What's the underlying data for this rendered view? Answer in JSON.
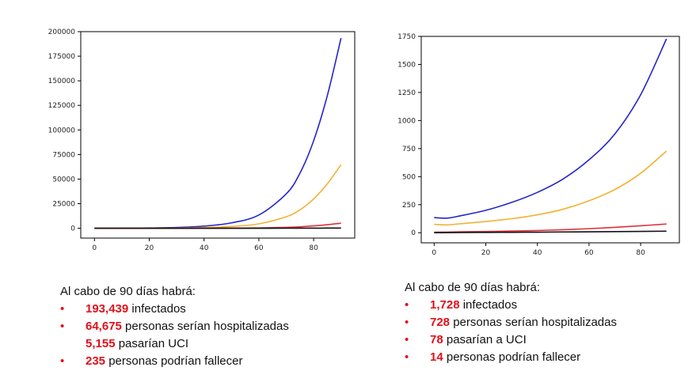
{
  "chart_data": [
    {
      "type": "line",
      "xlim": [
        -5,
        95
      ],
      "ylim": [
        -10000,
        200000
      ],
      "xticks": [
        0,
        20,
        40,
        60,
        80
      ],
      "yticks": [
        0,
        25000,
        50000,
        75000,
        100000,
        125000,
        150000,
        175000,
        200000
      ],
      "x": [
        0,
        10,
        20,
        30,
        40,
        50,
        60,
        70,
        75,
        80,
        85,
        90
      ],
      "series": [
        {
          "color": "#2525c8",
          "values": [
            0,
            60,
            300,
            800,
            2200,
            5500,
            13500,
            35000,
            56000,
            89000,
            135000,
            193439
          ]
        },
        {
          "color": "#f2b233",
          "values": [
            0,
            20,
            100,
            270,
            740,
            1850,
            4500,
            11700,
            18700,
            29800,
            45200,
            64675
          ]
        },
        {
          "color": "#e0303a",
          "values": [
            0,
            2,
            8,
            22,
            60,
            150,
            360,
            930,
            1490,
            2380,
            3600,
            5155
          ]
        },
        {
          "color": "#111111",
          "values": [
            0,
            0,
            2,
            4,
            10,
            20,
            40,
            60,
            90,
            120,
            170,
            235
          ]
        }
      ],
      "grid": false,
      "legend": "none"
    },
    {
      "type": "line",
      "xlim": [
        -5,
        95
      ],
      "ylim": [
        -90,
        1750
      ],
      "xticks": [
        0,
        20,
        40,
        60,
        80
      ],
      "yticks": [
        0,
        250,
        500,
        750,
        1000,
        1250,
        1500,
        1750
      ],
      "x": [
        0,
        5,
        10,
        20,
        30,
        40,
        50,
        60,
        70,
        80,
        90
      ],
      "series": [
        {
          "color": "#2525c8",
          "values": [
            135,
            130,
            150,
            200,
            270,
            360,
            480,
            650,
            880,
            1230,
            1728
          ]
        },
        {
          "color": "#f2b233",
          "values": [
            75,
            70,
            80,
            100,
            125,
            160,
            210,
            285,
            385,
            530,
            728
          ]
        },
        {
          "color": "#e0303a",
          "values": [
            5,
            6,
            8,
            11,
            15,
            20,
            27,
            36,
            48,
            62,
            78
          ]
        },
        {
          "color": "#111111",
          "values": [
            0,
            1,
            2,
            3,
            4,
            5,
            7,
            8,
            10,
            12,
            14
          ]
        }
      ],
      "grid": false,
      "legend": "none"
    }
  ],
  "summaries": [
    {
      "title": "Al cabo de 90 días habrá:",
      "items": [
        {
          "bullet": "•",
          "number": "193,439",
          "text": " infectados"
        },
        {
          "bullet": "•",
          "number": "64,675",
          "text": " personas serían hospitalizadas"
        },
        {
          "bullet": "",
          "number": "5,155",
          "text": " pasarían UCI"
        },
        {
          "bullet": "•",
          "number": "235",
          "text": " personas podrían fallecer"
        }
      ]
    },
    {
      "title": "Al cabo de 90 días habrá:",
      "items": [
        {
          "bullet": "•",
          "number": "1,728",
          "text": " infectados"
        },
        {
          "bullet": "•",
          "number": "728",
          "text": " personas serían hospitalizadas"
        },
        {
          "bullet": "•",
          "number": "78",
          "text": " pasarían a UCI"
        },
        {
          "bullet": "•",
          "number": "14",
          "text": " personas podrían fallecer"
        }
      ]
    }
  ]
}
